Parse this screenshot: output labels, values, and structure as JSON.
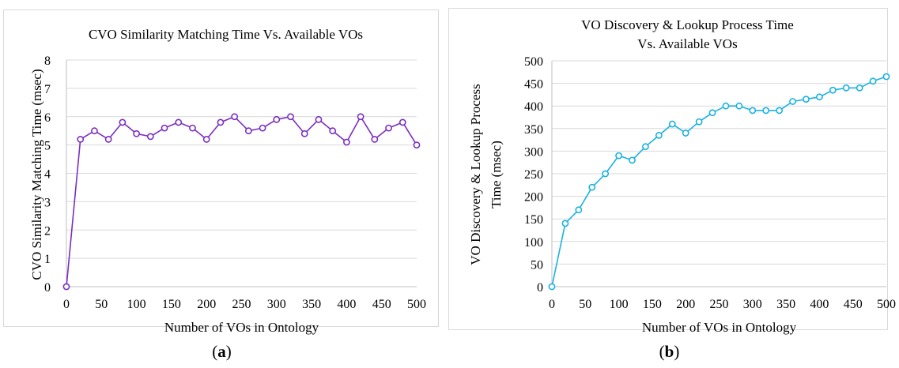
{
  "chart_data": [
    {
      "type": "line",
      "title": [
        "CVO Similarity  Matching Time Vs. Available  VOs"
      ],
      "xlabel": "Number of VOs in Ontology",
      "ylabel": [
        "CVO Similarity  Matching Time (msec)"
      ],
      "xlim": [
        0,
        500
      ],
      "ylim": [
        0,
        8
      ],
      "xticks": [
        0,
        50,
        100,
        150,
        200,
        250,
        300,
        350,
        400,
        450,
        500
      ],
      "yticks": [
        0,
        1,
        2,
        3,
        4,
        5,
        6,
        7,
        8
      ],
      "grid": "horizontal",
      "legend": "none",
      "color": "#7b2fbf",
      "x": [
        0,
        20,
        40,
        60,
        80,
        100,
        120,
        140,
        160,
        180,
        200,
        220,
        240,
        260,
        280,
        300,
        320,
        340,
        360,
        380,
        400,
        420,
        440,
        460,
        480,
        500
      ],
      "y": [
        0,
        5.2,
        5.5,
        5.2,
        5.8,
        5.4,
        5.3,
        5.6,
        5.8,
        5.6,
        5.2,
        5.8,
        6.0,
        5.5,
        5.6,
        5.9,
        6.0,
        5.4,
        5.9,
        5.5,
        5.1,
        6.0,
        5.2,
        5.6,
        5.8,
        5.0
      ]
    },
    {
      "type": "line",
      "title": [
        "VO Discovery & Lookup Process Time",
        "Vs. Available  VOs"
      ],
      "xlabel": "Number of VOs in Ontology",
      "ylabel": [
        "VO Discovery & Lookup Process",
        "Time (msec)"
      ],
      "xlim": [
        0,
        500
      ],
      "ylim": [
        0,
        500
      ],
      "xticks": [
        0,
        50,
        100,
        150,
        200,
        250,
        300,
        350,
        400,
        450,
        500
      ],
      "yticks": [
        0,
        50,
        100,
        150,
        200,
        250,
        300,
        350,
        400,
        450,
        500
      ],
      "grid": "horizontal",
      "legend": "none",
      "color": "#1ab2e0",
      "x": [
        0,
        20,
        40,
        60,
        80,
        100,
        120,
        140,
        160,
        180,
        200,
        220,
        240,
        260,
        280,
        300,
        320,
        340,
        360,
        380,
        400,
        420,
        440,
        460,
        480,
        500
      ],
      "y": [
        0,
        140,
        170,
        220,
        250,
        290,
        280,
        310,
        335,
        360,
        340,
        365,
        385,
        400,
        400,
        390,
        390,
        390,
        410,
        415,
        420,
        435,
        440,
        440,
        455,
        465
      ]
    }
  ],
  "captions": [
    {
      "open": "(",
      "letter": "a",
      "close": ")"
    },
    {
      "open": "(",
      "letter": "b",
      "close": ")"
    }
  ]
}
